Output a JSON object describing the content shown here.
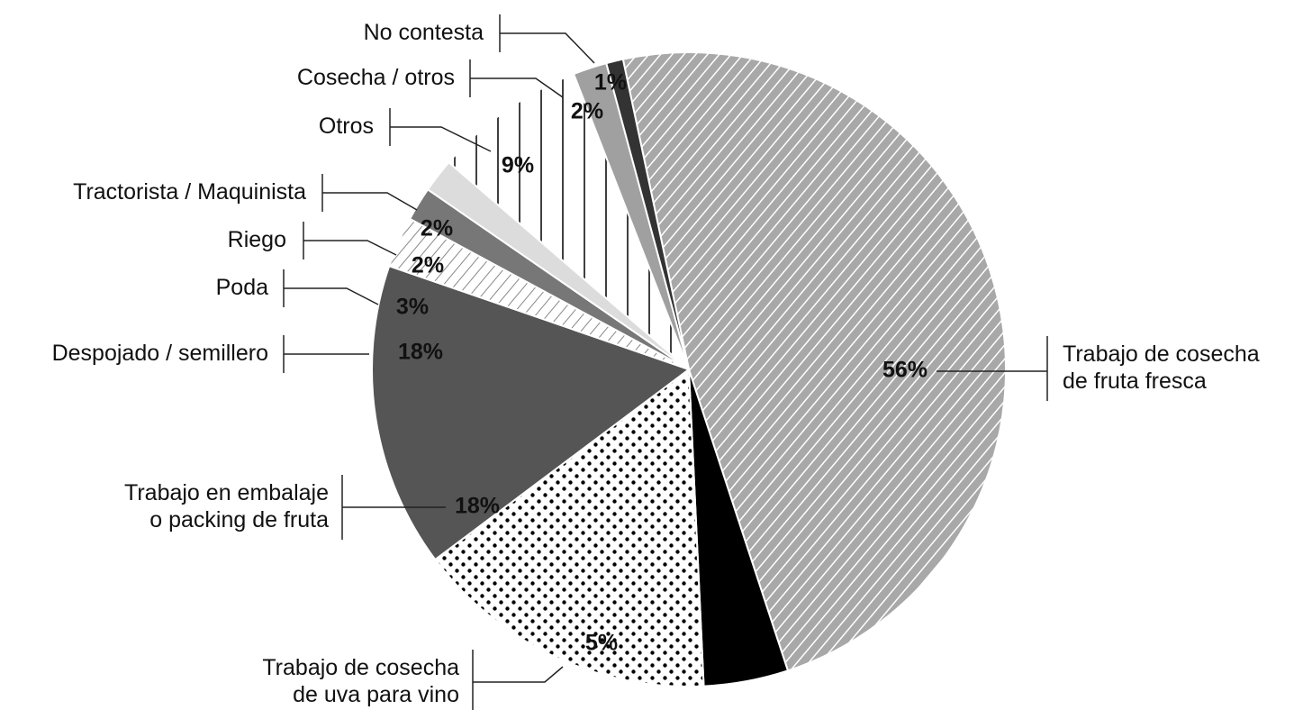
{
  "chart_data": {
    "type": "pie",
    "categories": [
      "Trabajo de cosecha\nde fruta fresca",
      "Trabajo de cosecha\nde uva para vino",
      "Trabajo en embalaje\no packing de fruta",
      "Despojado / semillero",
      "Poda",
      "Riego",
      "Tractorista / Maquinista",
      "Otros",
      "Cosecha / otros",
      "No contesta"
    ],
    "values": [
      56,
      5,
      18,
      18,
      3,
      2,
      2,
      9,
      2,
      1
    ],
    "value_labels": [
      "56%",
      "5%",
      "18%",
      "18%",
      "3%",
      "2%",
      "2%",
      "9%",
      "2%",
      "1%"
    ],
    "colors": [
      "#a8a8a8",
      "#000000",
      "#ffffff",
      "#555555",
      "#ffffff",
      "#777777",
      "#dcdcdc",
      "#ffffff",
      "#a0a0a0",
      "#333333"
    ],
    "patterns": [
      "diagonal",
      "solid",
      "dots",
      "solid",
      "diagonal",
      "solid",
      "solid",
      "vertical",
      "solid",
      "solid"
    ]
  }
}
